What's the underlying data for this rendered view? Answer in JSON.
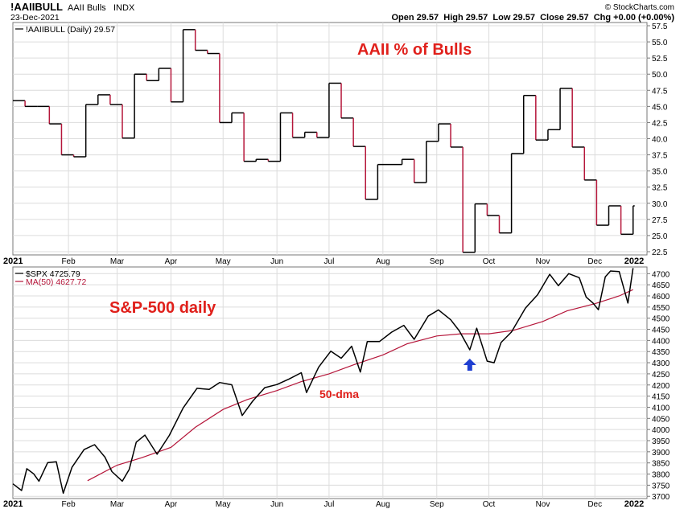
{
  "header": {
    "symbol": "!AAIIBULL",
    "name": "AAII Bulls",
    "exchange": "INDX",
    "date": "23-Dec-2021",
    "source": "© StockCharts.com",
    "quote": "Open 29.57  High 29.57  Low 29.57  Close 29.57  Chg +0.00 (+0.00%)"
  },
  "chart_data": [
    {
      "type": "line",
      "legend": "!AAIIBULL (Daily) 29.57",
      "annotation": "AAII % of Bulls",
      "line_color": "#000000",
      "decline_color": "#b5163a",
      "ylim": [
        22,
        58
      ],
      "yticks": [
        22.5,
        25.0,
        27.5,
        30.0,
        32.5,
        35.0,
        37.5,
        40.0,
        42.5,
        45.0,
        47.5,
        50.0,
        52.5,
        55.0,
        57.5
      ],
      "grid": true,
      "x_start": "2020-12-31",
      "x_end": "2021-12-31",
      "x": [
        "2020-12-31",
        "2021-01-07",
        "2021-01-14",
        "2021-01-21",
        "2021-01-28",
        "2021-02-04",
        "2021-02-11",
        "2021-02-18",
        "2021-02-25",
        "2021-03-04",
        "2021-03-11",
        "2021-03-18",
        "2021-03-25",
        "2021-04-01",
        "2021-04-08",
        "2021-04-15",
        "2021-04-22",
        "2021-04-29",
        "2021-05-06",
        "2021-05-13",
        "2021-05-20",
        "2021-05-27",
        "2021-06-03",
        "2021-06-10",
        "2021-06-17",
        "2021-06-24",
        "2021-07-01",
        "2021-07-08",
        "2021-07-15",
        "2021-07-22",
        "2021-07-29",
        "2021-08-05",
        "2021-08-12",
        "2021-08-19",
        "2021-08-26",
        "2021-09-02",
        "2021-09-09",
        "2021-09-16",
        "2021-09-23",
        "2021-09-30",
        "2021-10-07",
        "2021-10-14",
        "2021-10-21",
        "2021-10-28",
        "2021-11-04",
        "2021-11-11",
        "2021-11-18",
        "2021-11-25",
        "2021-12-02",
        "2021-12-09",
        "2021-12-16",
        "2021-12-23"
      ],
      "values": [
        45.9,
        45.0,
        45.0,
        42.3,
        37.5,
        37.2,
        45.3,
        46.8,
        45.3,
        40.1,
        50.0,
        49.0,
        50.9,
        45.7,
        56.9,
        53.7,
        53.2,
        42.5,
        44.0,
        36.5,
        36.8,
        36.5,
        44.0,
        40.2,
        41.0,
        40.2,
        48.6,
        43.2,
        38.8,
        30.6,
        36.0,
        36.0,
        36.8,
        33.2,
        39.6,
        42.3,
        38.7,
        22.4,
        29.9,
        28.1,
        25.4,
        37.7,
        46.7,
        39.8,
        41.4,
        47.8,
        38.7,
        33.6,
        26.6,
        29.6,
        25.2,
        29.6
      ]
    },
    {
      "type": "line",
      "title": "S&P-500 daily",
      "legend_price": "$SPX 4725.79",
      "legend_ma": "MA(50) 4627.72",
      "annotation_ma": "50-dma",
      "price_color": "#000000",
      "ma_color": "#b5163a",
      "marker_color": "#1f3fd1",
      "marker_date": "2021-09-20",
      "ylim": [
        3690,
        4730
      ],
      "yticks": [
        3700,
        3750,
        3800,
        3850,
        3900,
        3950,
        4000,
        4050,
        4100,
        4150,
        4200,
        4250,
        4300,
        4350,
        4400,
        4450,
        4500,
        4550,
        4600,
        4650,
        4700
      ],
      "grid": true,
      "x_start": "2020-12-31",
      "x_end": "2021-12-31",
      "x_labels": [
        "2021",
        "Feb",
        "Mar",
        "Apr",
        "May",
        "Jun",
        "Jul",
        "Aug",
        "Sep",
        "Oct",
        "Nov",
        "Dec",
        "2022"
      ],
      "x_label_dates": [
        "2020-12-31",
        "2021-02-01",
        "2021-03-01",
        "2021-04-01",
        "2021-05-01",
        "2021-06-01",
        "2021-07-01",
        "2021-08-01",
        "2021-09-01",
        "2021-10-01",
        "2021-11-01",
        "2021-12-01",
        "2021-12-31"
      ],
      "price_x": [
        "2020-12-31",
        "2021-01-05",
        "2021-01-08",
        "2021-01-12",
        "2021-01-15",
        "2021-01-20",
        "2021-01-25",
        "2021-01-29",
        "2021-02-03",
        "2021-02-10",
        "2021-02-16",
        "2021-02-22",
        "2021-02-26",
        "2021-03-04",
        "2021-03-08",
        "2021-03-12",
        "2021-03-17",
        "2021-03-24",
        "2021-03-31",
        "2021-04-08",
        "2021-04-16",
        "2021-04-23",
        "2021-04-29",
        "2021-05-06",
        "2021-05-12",
        "2021-05-18",
        "2021-05-25",
        "2021-06-01",
        "2021-06-08",
        "2021-06-15",
        "2021-06-18",
        "2021-06-25",
        "2021-07-02",
        "2021-07-08",
        "2021-07-14",
        "2021-07-19",
        "2021-07-23",
        "2021-07-30",
        "2021-08-06",
        "2021-08-13",
        "2021-08-19",
        "2021-08-27",
        "2021-09-02",
        "2021-09-09",
        "2021-09-14",
        "2021-09-20",
        "2021-09-24",
        "2021-09-30",
        "2021-10-04",
        "2021-10-08",
        "2021-10-14",
        "2021-10-22",
        "2021-10-29",
        "2021-11-05",
        "2021-11-10",
        "2021-11-16",
        "2021-11-22",
        "2021-11-26",
        "2021-11-30",
        "2021-12-03",
        "2021-12-07",
        "2021-12-10",
        "2021-12-15",
        "2021-12-20",
        "2021-12-23"
      ],
      "price_values": [
        3756,
        3726,
        3824,
        3801,
        3768,
        3851,
        3855,
        3714,
        3830,
        3910,
        3932,
        3876,
        3811,
        3768,
        3821,
        3943,
        3975,
        3889,
        3973,
        4097,
        4185,
        4180,
        4211,
        4201,
        4063,
        4127,
        4188,
        4202,
        4227,
        4255,
        4166,
        4280,
        4352,
        4320,
        4374,
        4258,
        4395,
        4395,
        4437,
        4468,
        4405,
        4509,
        4537,
        4493,
        4443,
        4358,
        4455,
        4307,
        4300,
        4391,
        4438,
        4545,
        4605,
        4697,
        4646,
        4700,
        4682,
        4595,
        4567,
        4538,
        4686,
        4712,
        4709,
        4568,
        4725
      ],
      "ma_x": [
        "2021-02-12",
        "2021-03-01",
        "2021-03-15",
        "2021-04-01",
        "2021-04-15",
        "2021-05-01",
        "2021-05-15",
        "2021-06-01",
        "2021-06-15",
        "2021-07-01",
        "2021-07-15",
        "2021-08-01",
        "2021-08-15",
        "2021-09-01",
        "2021-09-15",
        "2021-10-01",
        "2021-10-15",
        "2021-11-01",
        "2021-11-15",
        "2021-12-01",
        "2021-12-15",
        "2021-12-23"
      ],
      "ma_values": [
        3770,
        3840,
        3873,
        3920,
        4010,
        4090,
        4135,
        4175,
        4215,
        4250,
        4290,
        4335,
        4385,
        4420,
        4430,
        4430,
        4445,
        4485,
        4533,
        4565,
        4600,
        4628
      ]
    }
  ]
}
